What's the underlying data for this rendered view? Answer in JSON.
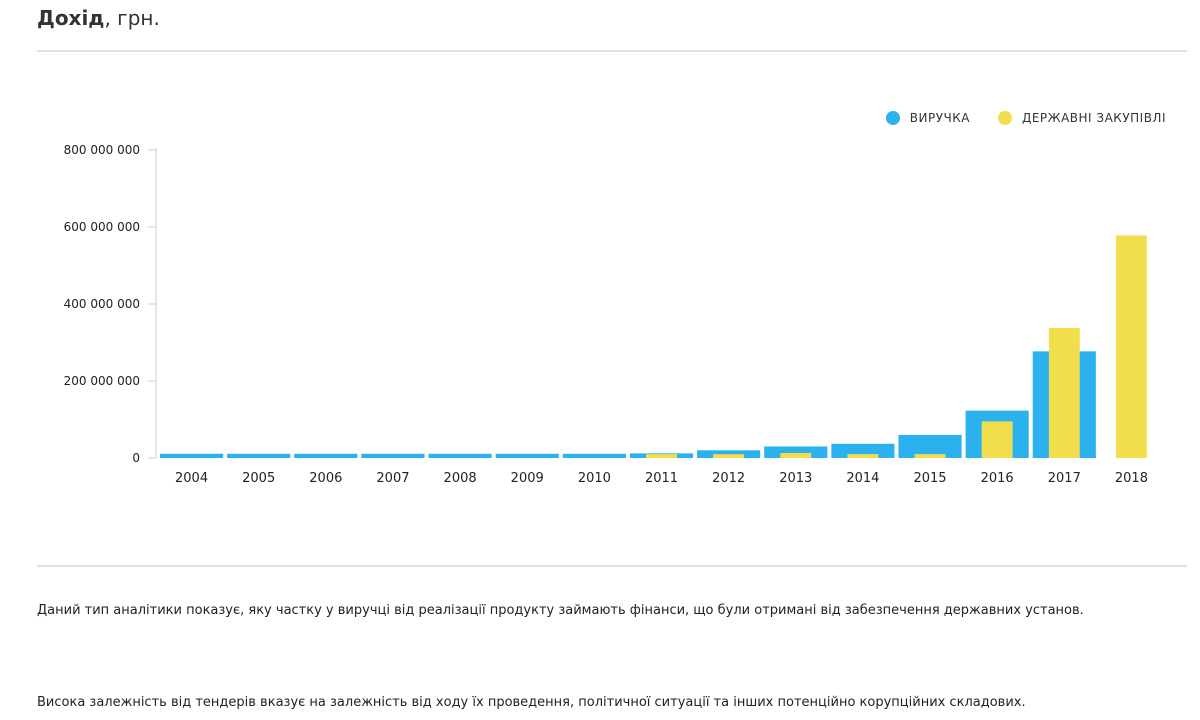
{
  "header": {
    "title_bold": "Дохід",
    "title_rest": ", грн."
  },
  "colors": {
    "revenue": "#2cb1ef",
    "procurement": "#f2de4c"
  },
  "chart_data": {
    "type": "bar",
    "title": "Дохід, грн.",
    "xlabel": "",
    "ylabel": "",
    "ylim": [
      0,
      800000000
    ],
    "yticks": [
      0,
      200000000,
      400000000,
      600000000,
      800000000
    ],
    "ytick_labels": [
      "0",
      "200 000 000",
      "400 000 000",
      "600 000 000",
      "800 000 000"
    ],
    "grid": false,
    "legend_position": "top-right",
    "categories": [
      "2004",
      "2005",
      "2006",
      "2007",
      "2008",
      "2009",
      "2010",
      "2011",
      "2012",
      "2013",
      "2014",
      "2015",
      "2016",
      "2017",
      "2018"
    ],
    "series": [
      {
        "name": "ВИРУЧКА",
        "color": "#2cb1ef",
        "values": [
          11000000,
          11000000,
          11000000,
          11000000,
          11000000,
          11000000,
          11000000,
          12000000,
          20000000,
          30000000,
          37000000,
          60000000,
          123000000,
          277000000,
          0
        ]
      },
      {
        "name": "ДЕРЖАВНІ ЗАКУПІВЛІ",
        "color": "#f2de4c",
        "values": [
          0,
          0,
          0,
          0,
          0,
          0,
          0,
          10000000,
          10000000,
          13000000,
          10000000,
          10000000,
          95000000,
          338000000,
          578000000
        ]
      }
    ]
  },
  "description": {
    "p1": "Даний тип аналітики показує, яку частку у виручці від реалізації продукту займають фінанси, що були отримані від забезпечення державних установ.",
    "p2": "Висока залежність від тендерів вказує на залежність від ходу їх проведення, політичної ситуації та інших потенційно корупційних складових."
  }
}
